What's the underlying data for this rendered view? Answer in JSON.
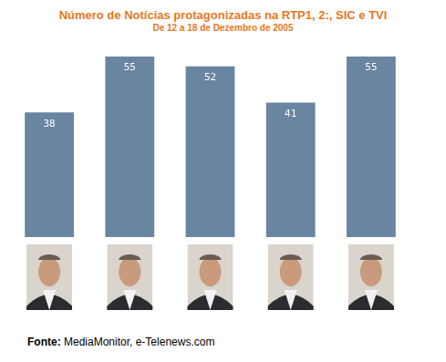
{
  "chart_data": {
    "type": "bar",
    "title": "Número de Notícias protagonizadas na RTP1, 2:, SIC e TVI",
    "subtitle": "De 12 a 18 de Dezembro de 2005",
    "categories": [
      null,
      null,
      null,
      null,
      null
    ],
    "values": [
      38,
      55,
      52,
      41,
      55
    ],
    "color": "#6a85a2",
    "ylim": [
      0,
      55
    ],
    "grid": false,
    "data_labels": true,
    "tick_labels": false,
    "source": "Fonte: MediaMonitor, e-Telenews.com"
  }
}
